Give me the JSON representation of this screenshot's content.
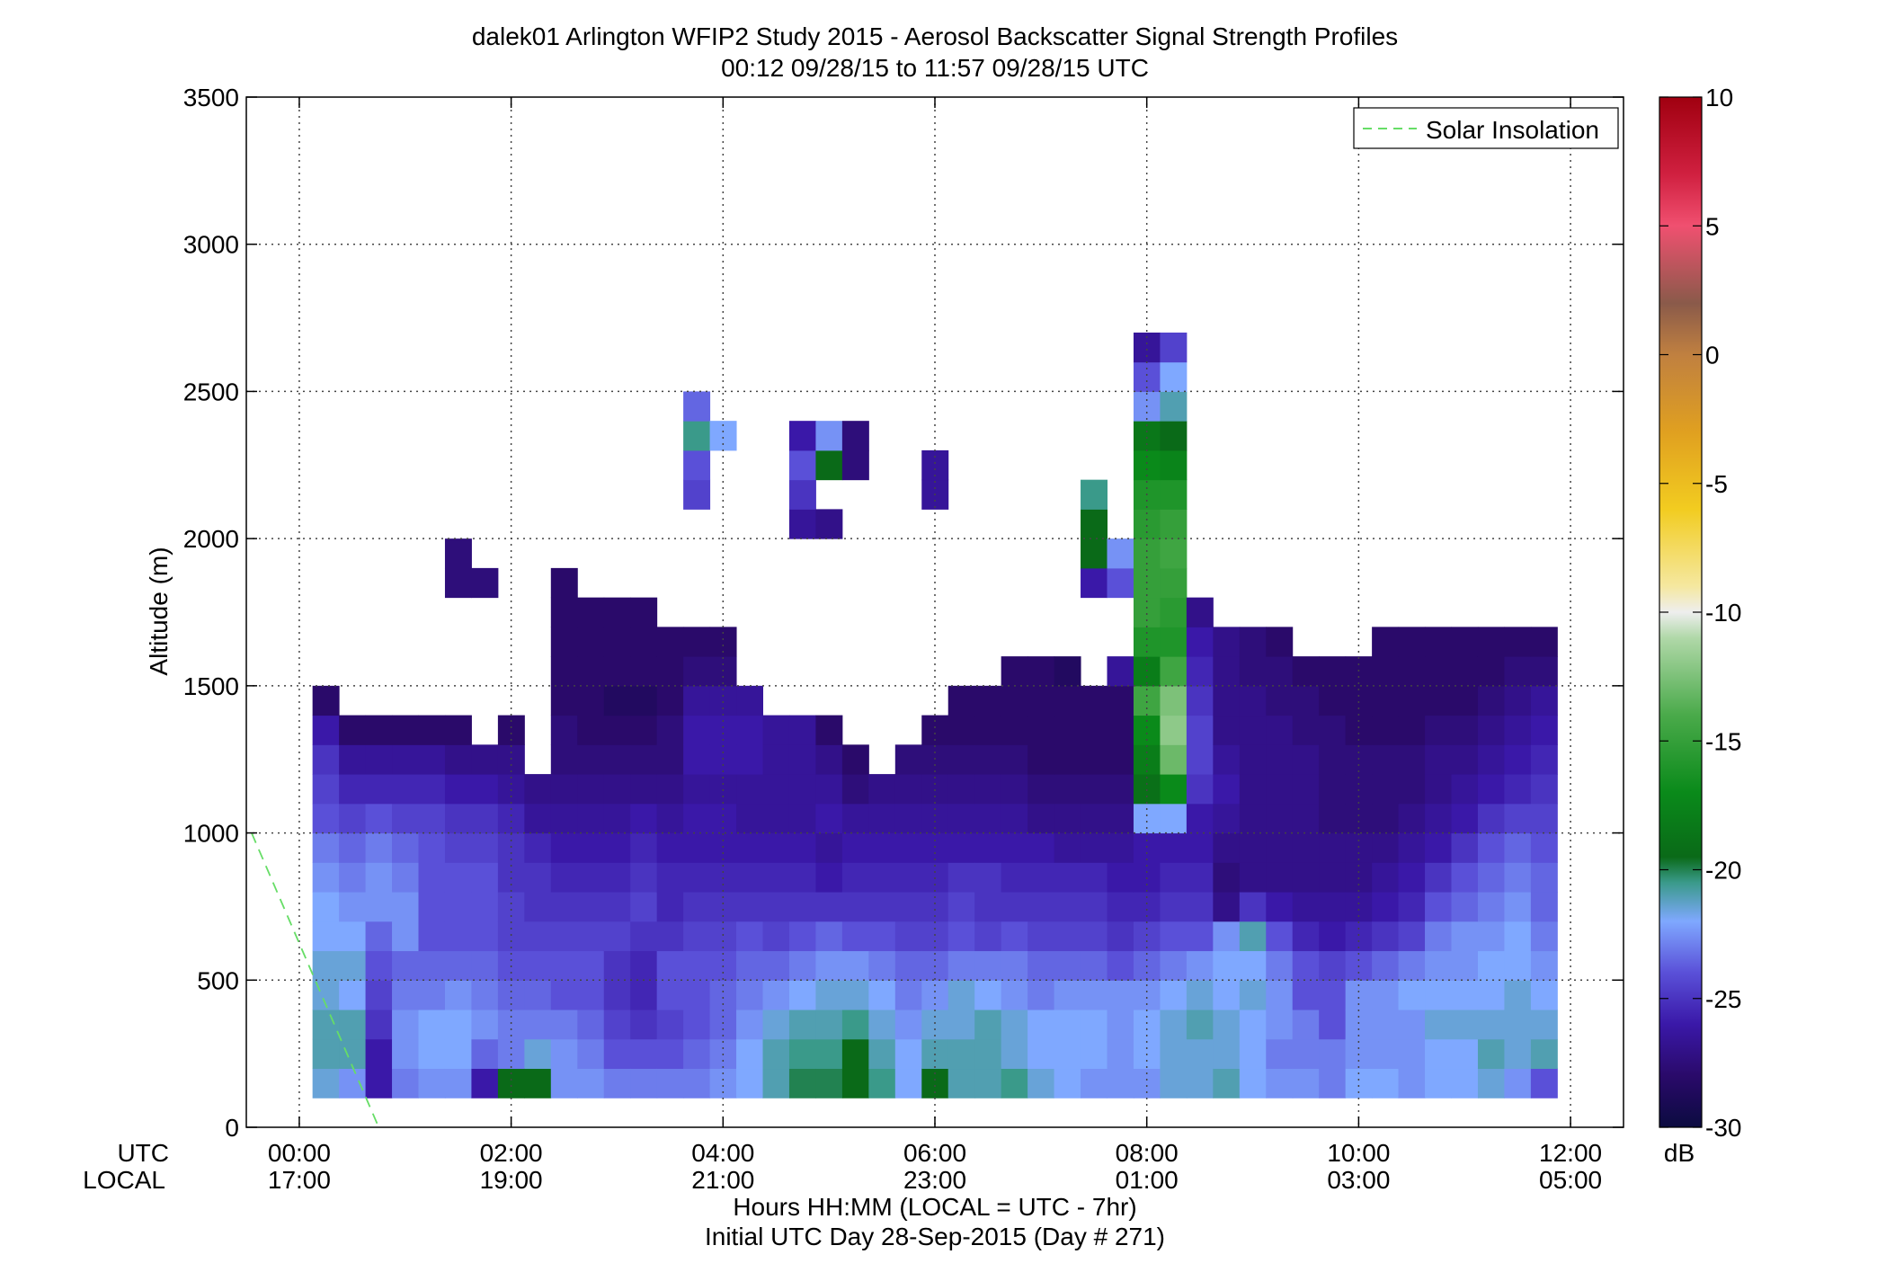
{
  "chart_data": {
    "type": "heatmap",
    "title": "dalek01 Arlington WFIP2 Study 2015 - Aerosol Backscatter Signal Strength Profiles",
    "subtitle": "00:12 09/28/15 to 11:57 09/28/15  UTC",
    "xlabel": "Hours HH:MM  (LOCAL = UTC - 7hr)",
    "xlabel2": "Initial UTC Day 28-Sep-2015 (Day # 271)",
    "ylabel": "Altitude (m)",
    "x_row_label_utc": "UTC",
    "x_row_label_local": "LOCAL",
    "xlim_hours": [
      -0.5,
      12.5
    ],
    "ylim": [
      0,
      3500
    ],
    "x_ticks": [
      {
        "value": 0,
        "utc": "00:00",
        "local": "17:00"
      },
      {
        "value": 2,
        "utc": "02:00",
        "local": "19:00"
      },
      {
        "value": 4,
        "utc": "04:00",
        "local": "21:00"
      },
      {
        "value": 6,
        "utc": "06:00",
        "local": "23:00"
      },
      {
        "value": 8,
        "utc": "08:00",
        "local": "01:00"
      },
      {
        "value": 10,
        "utc": "10:00",
        "local": "03:00"
      },
      {
        "value": 12,
        "utc": "12:00",
        "local": "05:00"
      }
    ],
    "y_ticks": [
      0,
      500,
      1000,
      1500,
      2000,
      2500,
      3000,
      3500
    ],
    "grid": true,
    "legend": {
      "position": "top-right",
      "entries": [
        {
          "label": "Solar Insolation",
          "color": "#66dd66",
          "style": "dashed"
        }
      ]
    },
    "solar_insolation": {
      "x": [
        -0.45,
        0.75
      ],
      "y": [
        1000,
        0
      ]
    },
    "colorbar": {
      "label": "dB",
      "range": [
        -30,
        10
      ],
      "ticks": [
        10,
        5,
        0,
        -5,
        -10,
        -15,
        -20,
        -25,
        -30
      ],
      "stops": [
        {
          "value": -30,
          "color": "#0b0b40"
        },
        {
          "value": -28,
          "color": "#2a0a6a"
        },
        {
          "value": -26,
          "color": "#3a18a8"
        },
        {
          "value": -24,
          "color": "#5a50d8"
        },
        {
          "value": -22,
          "color": "#7fa8ff"
        },
        {
          "value": -20.5,
          "color": "#3a9a8a"
        },
        {
          "value": -19.5,
          "color": "#0a6a18"
        },
        {
          "value": -17,
          "color": "#0a8a1a"
        },
        {
          "value": -14,
          "color": "#4aaa4a"
        },
        {
          "value": -11,
          "color": "#b0d8a8"
        },
        {
          "value": -10,
          "color": "#eeeeee"
        },
        {
          "value": -9,
          "color": "#f5e8a0"
        },
        {
          "value": -6,
          "color": "#f2cc20"
        },
        {
          "value": -3,
          "color": "#e0a020"
        },
        {
          "value": 0,
          "color": "#c08040"
        },
        {
          "value": 2,
          "color": "#8a5a4a"
        },
        {
          "value": 5,
          "color": "#f05070"
        },
        {
          "value": 7,
          "color": "#d02040"
        },
        {
          "value": 10,
          "color": "#a00010"
        }
      ]
    },
    "range_gate_m": 100,
    "time_step_h": 0.25,
    "profiles_note": "dB values for range gates starting at 100 m (lowest first), one profile per time_step_h",
    "profiles": [
      {
        "t": 0.25,
        "db": [
          -21.5,
          -21,
          -21,
          -21.5,
          -21.5,
          -22,
          -22,
          -22.5,
          -23,
          -24,
          -24.5,
          -25,
          -26,
          -28
        ]
      },
      {
        "t": 0.5,
        "db": [
          -22.5,
          -21,
          -21,
          -22,
          -21.5,
          -22,
          -22.5,
          -23,
          -23.5,
          -24.5,
          -25.5,
          -26.5,
          -28
        ]
      },
      {
        "t": 0.75,
        "db": [
          -26,
          -26,
          -25,
          -24.5,
          -24,
          -23.5,
          -22.5,
          -22.5,
          -23,
          -24,
          -25.5,
          -26.5,
          -28
        ]
      },
      {
        "t": 1.0,
        "db": [
          -23,
          -22.5,
          -22.5,
          -23,
          -23.5,
          -22.5,
          -22.5,
          -23,
          -23.5,
          -24.5,
          -25.5,
          -26.5,
          -28
        ]
      },
      {
        "t": 1.25,
        "db": [
          -22.5,
          -22,
          -22,
          -23,
          -23.5,
          -24,
          -24,
          -24,
          -24,
          -24.5,
          -25.5,
          -26.5,
          -28
        ]
      },
      {
        "t": 1.5,
        "db": [
          -22.5,
          -22,
          -22,
          -22.5,
          -23.5,
          -24,
          -24,
          -24,
          -24.5,
          -25,
          -26,
          -27,
          -28
        ],
        "extra": [
          [
            1800,
            -27.5
          ],
          [
            1900,
            -27.5
          ]
        ]
      },
      {
        "t": 1.75,
        "db": [
          -26,
          -23.5,
          -22.5,
          -23,
          -23.5,
          -24,
          -24,
          -24,
          -24.5,
          -25,
          -26,
          -27
        ],
        "extra": [
          [
            1800,
            -27.5
          ]
        ]
      },
      {
        "t": 2.0,
        "db": [
          -19.5,
          -23,
          -23,
          -23.5,
          -24,
          -24.5,
          -24.5,
          -25,
          -25,
          -25.5,
          -26.5,
          -27,
          -28
        ]
      },
      {
        "t": 2.25,
        "db": [
          -19.5,
          -21.5,
          -23,
          -23.5,
          -24,
          -24.5,
          -25,
          -25,
          -25.5,
          -26.5,
          -27
        ]
      },
      {
        "t": 2.5,
        "db": [
          -22.5,
          -22.5,
          -23,
          -24,
          -24,
          -24.5,
          -25,
          -25.5,
          -26,
          -26.5,
          -27,
          -27.5,
          -27.5,
          -28,
          -28,
          -28,
          -28,
          -28
        ]
      },
      {
        "t": 2.75,
        "db": [
          -22.5,
          -23,
          -23.5,
          -24,
          -24,
          -24.5,
          -25,
          -25.5,
          -26,
          -26.5,
          -27,
          -27.5,
          -28,
          -28,
          -28,
          -28,
          -28
        ]
      },
      {
        "t": 3.0,
        "db": [
          -23,
          -24,
          -24.5,
          -25,
          -25,
          -24.5,
          -25,
          -25.5,
          -26,
          -26.5,
          -27,
          -27.5,
          -28,
          -28.5,
          -28,
          -28,
          -28
        ]
      },
      {
        "t": 3.25,
        "db": [
          -23,
          -24,
          -25,
          -25.5,
          -25.5,
          -25,
          -24.5,
          -25,
          -25.5,
          -26,
          -27,
          -27.5,
          -28,
          -28.5,
          -28,
          -28,
          -28
        ]
      },
      {
        "t": 3.5,
        "db": [
          -23,
          -24,
          -24.5,
          -24,
          -24,
          -25,
          -25.5,
          -25.5,
          -26,
          -26.5,
          -27,
          -27.5,
          -27.5,
          -28,
          -28,
          -28
        ]
      },
      {
        "t": 3.75,
        "db": [
          -23,
          -23.5,
          -24,
          -24,
          -24,
          -24.5,
          -25,
          -25.5,
          -26,
          -26,
          -26.5,
          -26,
          -26,
          -26.5,
          -27.5,
          -28
        ],
        "extra": [
          [
            2100,
            -24.5
          ],
          [
            2200,
            -24
          ],
          [
            2300,
            -20.5
          ],
          [
            2400,
            -23.5
          ]
        ]
      },
      {
        "t": 4.0,
        "db": [
          -22.5,
          -23,
          -23.5,
          -23.5,
          -24,
          -24.5,
          -25,
          -25.5,
          -26,
          -26,
          -26.5,
          -26,
          -26,
          -26.5,
          -27.5,
          -28
        ],
        "extra": [
          [
            2300,
            -22
          ]
        ]
      },
      {
        "t": 4.25,
        "db": [
          -22,
          -22,
          -22.5,
          -23,
          -23.5,
          -24,
          -25,
          -25.5,
          -26,
          -26.5,
          -26.5,
          -26,
          -26,
          -26.5
        ]
      },
      {
        "t": 4.5,
        "db": [
          -21,
          -21,
          -21.5,
          -22.5,
          -23.5,
          -24.5,
          -25,
          -25.5,
          -26,
          -26.5,
          -26.5,
          -26.5,
          -26.5
        ]
      },
      {
        "t": 4.75,
        "db": [
          -20,
          -20.5,
          -21,
          -22,
          -23,
          -24,
          -25,
          -25.5,
          -26,
          -26.5,
          -26.5,
          -26.5,
          -26.5
        ],
        "extra": [
          [
            2000,
            -26.5
          ],
          [
            2100,
            -25
          ],
          [
            2200,
            -24
          ],
          [
            2300,
            -26
          ]
        ]
      },
      {
        "t": 5.0,
        "db": [
          -20,
          -20.5,
          -21,
          -21.5,
          -22.5,
          -23.5,
          -25,
          -26,
          -26.5,
          -26,
          -26.5,
          -27,
          -28
        ],
        "extra": [
          [
            2000,
            -27
          ],
          [
            2200,
            -19.5
          ],
          [
            2300,
            -22.5
          ]
        ]
      },
      {
        "t": 5.25,
        "db": [
          -19.5,
          -19.5,
          -20.5,
          -21.5,
          -22.5,
          -24,
          -25,
          -25.5,
          -26,
          -26.5,
          -27.5,
          -28
        ],
        "extra": [
          [
            2200,
            -27.5
          ],
          [
            2300,
            -27.5
          ]
        ]
      },
      {
        "t": 5.5,
        "db": [
          -20.5,
          -21,
          -21.5,
          -22,
          -23,
          -24,
          -25,
          -25.5,
          -26,
          -26.5,
          -27
        ]
      },
      {
        "t": 5.75,
        "db": [
          -22,
          -22,
          -22.5,
          -23,
          -23.5,
          -24.5,
          -25,
          -25.5,
          -26,
          -26.5,
          -27,
          -27.5
        ]
      },
      {
        "t": 6.0,
        "db": [
          -19.5,
          -21,
          -21.5,
          -22.5,
          -23.5,
          -24.5,
          -25,
          -25.5,
          -26,
          -26.5,
          -27,
          -27.5,
          -28
        ],
        "extra": [
          [
            2100,
            -26.5
          ],
          [
            2200,
            -26.5
          ]
        ]
      },
      {
        "t": 6.25,
        "db": [
          -21,
          -21,
          -21.5,
          -21.5,
          -23,
          -24,
          -24.5,
          -25,
          -26,
          -26.5,
          -27,
          -27.5,
          -28,
          -28
        ]
      },
      {
        "t": 6.5,
        "db": [
          -21,
          -21,
          -21,
          -22,
          -23,
          -24.5,
          -25,
          -25,
          -26,
          -26.5,
          -27,
          -27.5,
          -28,
          -28
        ]
      },
      {
        "t": 6.75,
        "db": [
          -20.5,
          -21.5,
          -21.5,
          -22.5,
          -23,
          -24,
          -25,
          -25.5,
          -26,
          -26.5,
          -27,
          -27.5,
          -28,
          -28,
          -28
        ]
      },
      {
        "t": 7.0,
        "db": [
          -21.5,
          -22,
          -22,
          -23,
          -23.5,
          -24.5,
          -25,
          -25.5,
          -26,
          -27,
          -27.5,
          -28,
          -28,
          -28,
          -28
        ]
      },
      {
        "t": 7.25,
        "db": [
          -22,
          -22,
          -22,
          -22.5,
          -23.5,
          -24.5,
          -25,
          -25.5,
          -26.5,
          -27,
          -27.5,
          -28,
          -28,
          -28,
          -28.5
        ]
      },
      {
        "t": 7.5,
        "db": [
          -22.5,
          -22,
          -22,
          -22.5,
          -23.5,
          -24.5,
          -25,
          -25.5,
          -26.5,
          -27,
          -27.5,
          -28,
          -28,
          -28
        ],
        "extra": [
          [
            1800,
            -26
          ],
          [
            1900,
            -19.5
          ],
          [
            2000,
            -19.5
          ],
          [
            2100,
            -20.5
          ]
        ]
      },
      {
        "t": 7.75,
        "db": [
          -22.5,
          -22.5,
          -22.5,
          -22.5,
          -24,
          -25,
          -25.5,
          -26,
          -26.5,
          -27,
          -27.5,
          -28,
          -28,
          -28
        ],
        "extra": [
          [
            1500,
            -26.5
          ],
          [
            1800,
            -24
          ],
          [
            1900,
            -22.5
          ]
        ]
      },
      {
        "t": 8.0,
        "db": [
          -22.5,
          -22,
          -22,
          -22.5,
          -23.5,
          -24.5,
          -25.5,
          -26,
          -26,
          -22,
          -19,
          -18,
          -17,
          -14.5,
          -18,
          -16,
          -15,
          -15,
          -15,
          -15.5,
          -16,
          -17,
          -18.5,
          -22.5,
          -24,
          -26.5
        ],
        "start": 100
      },
      {
        "t": 8.25,
        "db": [
          -21.5,
          -21.5,
          -21.5,
          -22,
          -23,
          -24,
          -25,
          -25.5,
          -26,
          -22,
          -17,
          -13,
          -12,
          -12.5,
          -14.5,
          -16,
          -15.5,
          -15,
          -14.5,
          -15,
          -16,
          -17.5,
          -19.5,
          -21,
          -22,
          -24.5
        ]
      },
      {
        "t": 8.5,
        "db": [
          -21.5,
          -21.5,
          -21,
          -21.5,
          -22.5,
          -24,
          -25,
          -25.5,
          -26,
          -26,
          -25,
          -24.5,
          -24.5,
          -25,
          -25.5,
          -26,
          -27
        ]
      },
      {
        "t": 8.75,
        "db": [
          -21,
          -21.5,
          -21.5,
          -22,
          -22,
          -22.5,
          -27,
          -27.5,
          -27,
          -26.5,
          -26,
          -26.5,
          -27,
          -27,
          -27,
          -27
        ]
      },
      {
        "t": 9.0,
        "db": [
          -22,
          -22,
          -22,
          -21.5,
          -22,
          -21,
          -25,
          -27,
          -27,
          -27,
          -27,
          -27,
          -27,
          -27,
          -27.5,
          -27.5
        ]
      },
      {
        "t": 9.25,
        "db": [
          -22.5,
          -23,
          -22.5,
          -22.5,
          -23,
          -24,
          -26,
          -27,
          -27,
          -27,
          -27,
          -27,
          -27,
          -27.5,
          -27.5,
          -28
        ]
      },
      {
        "t": 9.5,
        "db": [
          -22.5,
          -23,
          -23,
          -24,
          -24,
          -25.5,
          -26.5,
          -27,
          -27,
          -27,
          -27,
          -27,
          -27.5,
          -27.5,
          -28
        ]
      },
      {
        "t": 9.75,
        "db": [
          -23,
          -23,
          -24,
          -24,
          -24.5,
          -26,
          -26.5,
          -27,
          -27,
          -27.5,
          -27.5,
          -27.5,
          -27.5,
          -28,
          -28
        ]
      },
      {
        "t": 10.0,
        "db": [
          -22,
          -22.5,
          -22.5,
          -22.5,
          -24,
          -25.5,
          -26.5,
          -27,
          -27,
          -27.5,
          -27.5,
          -27.5,
          -28,
          -28,
          -28
        ]
      },
      {
        "t": 10.25,
        "db": [
          -22,
          -22.5,
          -22.5,
          -22.5,
          -23.5,
          -25,
          -26,
          -26.5,
          -27,
          -27.5,
          -27.5,
          -27.5,
          -28,
          -28,
          -28,
          -28
        ]
      },
      {
        "t": 10.5,
        "db": [
          -22.5,
          -22.5,
          -22.5,
          -22,
          -23,
          -24.5,
          -25.5,
          -26,
          -26.5,
          -27,
          -27.5,
          -27.5,
          -28,
          -28,
          -28,
          -28
        ]
      },
      {
        "t": 10.75,
        "db": [
          -22,
          -22,
          -21.5,
          -22,
          -22.5,
          -23,
          -24,
          -25,
          -26,
          -26.5,
          -27,
          -27,
          -27.5,
          -28,
          -28,
          -28
        ]
      },
      {
        "t": 11.0,
        "db": [
          -22,
          -22,
          -21.5,
          -22,
          -22.5,
          -22.5,
          -23.5,
          -24,
          -25,
          -26,
          -26.5,
          -27,
          -27.5,
          -28,
          -28,
          -28
        ]
      },
      {
        "t": 11.25,
        "db": [
          -21.5,
          -21,
          -21.5,
          -22,
          -22,
          -22.5,
          -23,
          -23.5,
          -24,
          -25,
          -26,
          -26.5,
          -27,
          -27.5,
          -28,
          -28
        ]
      },
      {
        "t": 11.5,
        "db": [
          -22.5,
          -21.5,
          -21.5,
          -21.5,
          -22,
          -22,
          -22.5,
          -23,
          -23.5,
          -24.5,
          -25.5,
          -26,
          -26.5,
          -27,
          -27.5,
          -28
        ]
      },
      {
        "t": 11.75,
        "db": [
          -24,
          -21,
          -21.5,
          -22,
          -22.5,
          -23,
          -23.5,
          -23.5,
          -24,
          -24.5,
          -25,
          -25.5,
          -26,
          -26.5,
          -27.5,
          -28
        ]
      }
    ]
  }
}
